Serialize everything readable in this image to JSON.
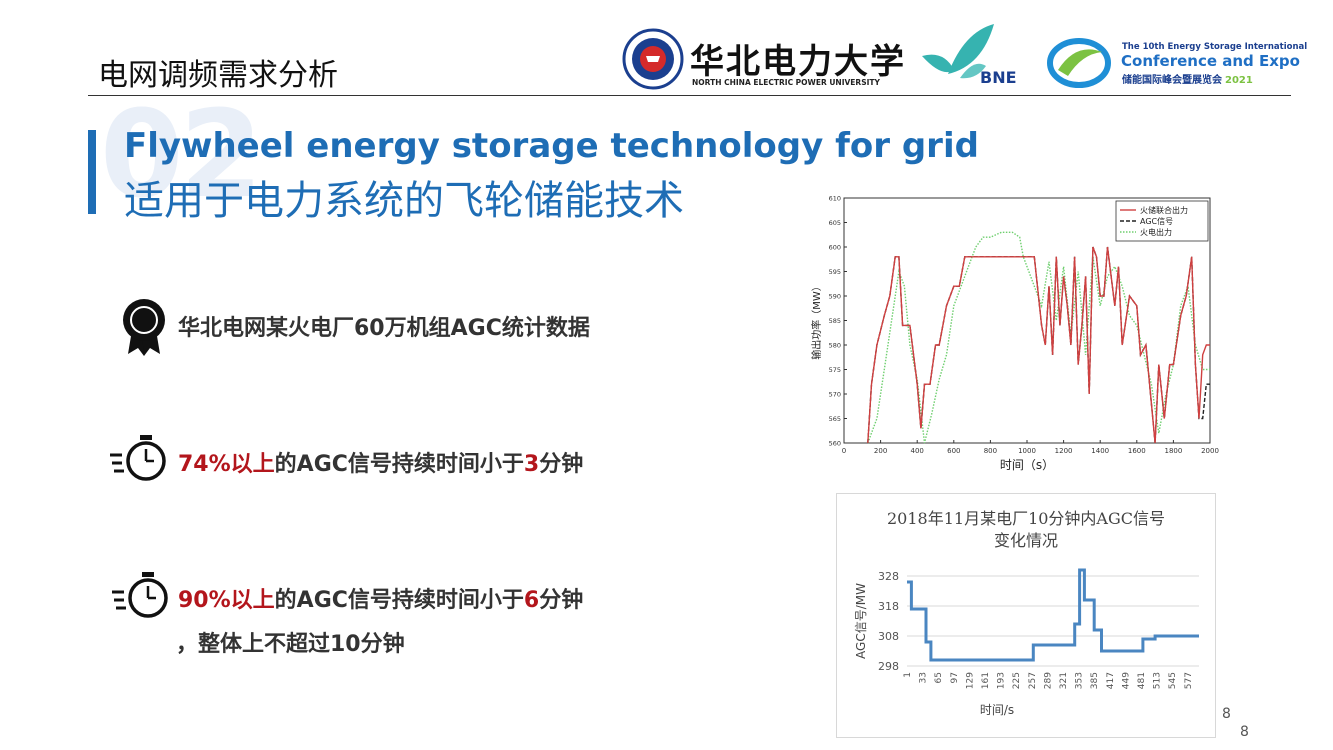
{
  "header": {
    "section_title": "电网调频需求分析",
    "university_name_zh": "华北电力大学",
    "university_name_en": "NORTH CHINA ELECTRIC POWER UNIVERSITY",
    "bne_logo_text": "BNE",
    "conf_line1": "The 10th Energy Storage International",
    "conf_line2": "Conference and Expo",
    "conf_line3_zh": "储能国际峰会暨展览会",
    "conf_line3_year": "2021"
  },
  "main": {
    "section_number": "02",
    "title_en": "Flywheel energy storage technology for grid",
    "title_zh": "适用于电力系统的飞轮储能技术",
    "bullet1": "华北电网某火电厂60万机组AGC统计数据",
    "bullet2": {
      "red": "74%以上",
      "text1": "的AGC信号持续时间小于",
      "red2": "3",
      "text2": "分钟"
    },
    "bullet3": {
      "red": "90%以上",
      "text1": "的AGC信号持续时间小于",
      "red2": "6",
      "text2": "分钟"
    },
    "bullet3_line2": "，整体上不超过10分钟"
  },
  "page": {
    "number1": "8",
    "number2": "8"
  },
  "colors": {
    "accent": "#1e6db5",
    "highlight": "#b3161c",
    "chart2_line": "#4a86c1"
  },
  "chart_data": [
    {
      "type": "line",
      "title": "",
      "xlabel": "时间（s）",
      "ylabel": "输出功率（MW）",
      "xlim": [
        0,
        2000
      ],
      "ylim": [
        560,
        610
      ],
      "x_ticks": [
        "0",
        "200",
        "400",
        "600",
        "800",
        "1000",
        "1200",
        "1400",
        "1600",
        "1800",
        "2000"
      ],
      "y_ticks": [
        "560",
        "565",
        "570",
        "575",
        "580",
        "585",
        "590",
        "595",
        "600",
        "605",
        "610"
      ],
      "legend": "top-right",
      "series": [
        {
          "name": "火储联合出力",
          "color": "#d04040",
          "dash": "solid",
          "x": [
            130,
            150,
            180,
            200,
            220,
            250,
            280,
            300,
            320,
            360,
            400,
            420,
            440,
            470,
            500,
            520,
            560,
            600,
            630,
            660,
            690,
            710,
            760,
            800,
            860,
            920,
            980,
            1000,
            1020,
            1040,
            1080,
            1100,
            1120,
            1140,
            1160,
            1180,
            1200,
            1220,
            1240,
            1260,
            1280,
            1300,
            1320,
            1340,
            1360,
            1380,
            1400,
            1420,
            1440,
            1480,
            1500,
            1520,
            1560,
            1600,
            1620,
            1650,
            1700,
            1720,
            1750,
            1780,
            1800,
            1840,
            1870,
            1900,
            1920,
            1940,
            1960,
            1980,
            2000
          ],
          "y": [
            560,
            572,
            580,
            583,
            586,
            590,
            598,
            598,
            584,
            584,
            572,
            563,
            572,
            572,
            580,
            580,
            588,
            592,
            592,
            598,
            598,
            598,
            598,
            598,
            598,
            598,
            598,
            598,
            598,
            598,
            584,
            580,
            592,
            578,
            598,
            584,
            594,
            588,
            580,
            598,
            576,
            584,
            594,
            570,
            600,
            598,
            590,
            590,
            600,
            588,
            596,
            580,
            590,
            588,
            578,
            580,
            560,
            576,
            565,
            576,
            576,
            586,
            590,
            598,
            576,
            565,
            578,
            580,
            580
          ]
        },
        {
          "name": "AGC信号",
          "color": "#222222",
          "dash": "dashed",
          "x": [
            130,
            150,
            180,
            200,
            220,
            250,
            280,
            300,
            320,
            360,
            400,
            420,
            440,
            470,
            500,
            520,
            560,
            600,
            630,
            660,
            690,
            710,
            760,
            800,
            860,
            920,
            980,
            1000,
            1020,
            1040,
            1080,
            1100,
            1120,
            1140,
            1160,
            1180,
            1200,
            1220,
            1240,
            1260,
            1280,
            1300,
            1320,
            1340,
            1360,
            1380,
            1400,
            1420,
            1440,
            1480,
            1500,
            1520,
            1560,
            1600,
            1620,
            1650,
            1700,
            1720,
            1750,
            1780,
            1800,
            1840,
            1870,
            1900,
            1920,
            1940,
            1960,
            1980,
            2000
          ],
          "y": [
            560,
            572,
            580,
            583,
            586,
            590,
            598,
            598,
            584,
            584,
            572,
            563,
            572,
            572,
            580,
            580,
            588,
            592,
            592,
            598,
            598,
            598,
            598,
            598,
            598,
            598,
            598,
            598,
            598,
            598,
            584,
            580,
            592,
            578,
            598,
            584,
            594,
            588,
            580,
            598,
            576,
            584,
            594,
            570,
            600,
            598,
            590,
            590,
            600,
            588,
            596,
            580,
            590,
            588,
            578,
            580,
            560,
            576,
            565,
            576,
            576,
            586,
            590,
            598,
            576,
            565,
            565,
            572,
            572
          ]
        },
        {
          "name": "火电出力",
          "color": "#6fcf6f",
          "dash": "dotted",
          "x": [
            130,
            180,
            220,
            260,
            300,
            330,
            360,
            400,
            440,
            480,
            520,
            560,
            600,
            640,
            680,
            720,
            760,
            800,
            860,
            920,
            960,
            980,
            1000,
            1040,
            1080,
            1120,
            1160,
            1200,
            1240,
            1280,
            1320,
            1360,
            1400,
            1440,
            1480,
            1520,
            1560,
            1600,
            1640,
            1680,
            1720,
            1760,
            1800,
            1840,
            1880,
            1920,
            1960,
            2000
          ],
          "y": [
            560,
            565,
            575,
            585,
            595,
            592,
            580,
            573,
            560,
            566,
            573,
            578,
            588,
            592,
            596,
            600,
            602,
            602,
            603,
            603,
            602,
            598,
            596,
            592,
            588,
            597,
            585,
            596,
            582,
            595,
            578,
            598,
            588,
            594,
            596,
            592,
            586,
            584,
            578,
            572,
            562,
            570,
            576,
            588,
            592,
            580,
            575,
            575
          ]
        }
      ]
    },
    {
      "type": "line",
      "title": "2018年11月某电厂10分钟内AGC信号变化情况",
      "xlabel": "时间/s",
      "ylabel": "AGC信号/MW",
      "xlim": [
        1,
        600
      ],
      "ylim": [
        298,
        328
      ],
      "y_ticks": [
        "298",
        "308",
        "318",
        "328"
      ],
      "x_ticks": [
        "1",
        "33",
        "65",
        "97",
        "129",
        "161",
        "193",
        "225",
        "257",
        "289",
        "321",
        "353",
        "385",
        "417",
        "449",
        "481",
        "513",
        "545",
        "577"
      ],
      "series": [
        {
          "name": "",
          "x": [
            1,
            10,
            10,
            40,
            40,
            50,
            50,
            60,
            60,
            260,
            260,
            345,
            345,
            355,
            355,
            365,
            365,
            385,
            385,
            400,
            400,
            415,
            415,
            485,
            485,
            510,
            510,
            600
          ],
          "y": [
            326,
            326,
            317,
            317,
            306,
            306,
            300,
            300,
            300,
            300,
            305,
            305,
            312,
            312,
            330,
            330,
            320,
            320,
            310,
            310,
            303,
            303,
            303,
            303,
            307,
            307,
            308,
            308
          ]
        }
      ]
    }
  ]
}
